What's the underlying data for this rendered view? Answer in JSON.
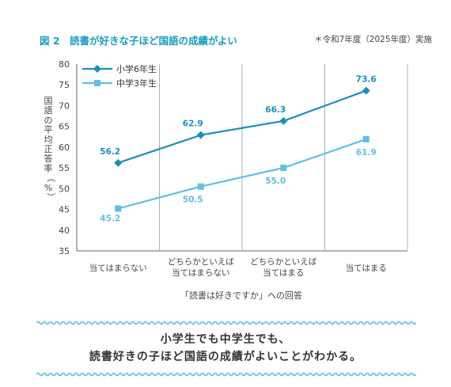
{
  "figure": {
    "title": "図 2　読書が好きな子ほど国語の成績がよい",
    "note": "＊令和7年度（2025年度）実施"
  },
  "colors": {
    "series1": "#1b8fbc",
    "series2": "#5fbfe0",
    "accent": "#1a9bc4",
    "grid": "#b0b0b0"
  },
  "chart_data": {
    "type": "line",
    "categories": [
      [
        "当てはまらない"
      ],
      [
        "どちらかといえば",
        "当てはまらない"
      ],
      [
        "どちらかといえば",
        "当てはまる"
      ],
      [
        "当てはまる"
      ]
    ],
    "series": [
      {
        "name": "小学6年生",
        "marker": "diamond",
        "values": [
          56.2,
          62.9,
          66.3,
          73.6
        ]
      },
      {
        "name": "中学3年生",
        "marker": "square",
        "values": [
          45.2,
          50.5,
          55.0,
          61.9
        ]
      }
    ],
    "value_labels": [
      [
        "56.2",
        "62.9",
        "66.3",
        "73.6"
      ],
      [
        "45.2",
        "50.5",
        "55.0",
        "61.9"
      ]
    ],
    "ylabel": "国語の平均正答率（%）",
    "xlabel": "「読書は好きですか」への回答",
    "ylim": [
      35,
      80
    ],
    "yticks": [
      35,
      40,
      45,
      50,
      55,
      60,
      65,
      70,
      75,
      80
    ],
    "legend": "top-left",
    "grid": "vertical category dividers"
  },
  "conclusion": {
    "line1": "小学生でも中学生でも、",
    "line2": "読書好きの子ほど国語の成績がよいことがわかる。"
  }
}
